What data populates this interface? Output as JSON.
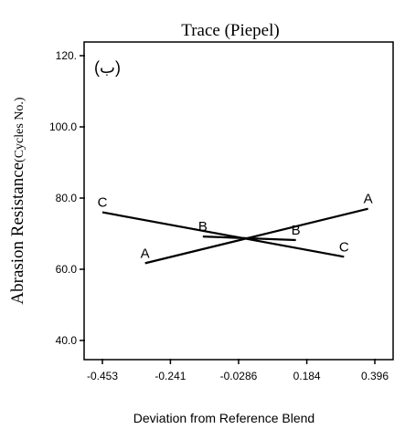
{
  "chart_data": {
    "type": "line",
    "title": "Trace (Piepel)",
    "panel_label": "(ب)",
    "xlabel": "Deviation from Reference Blend",
    "ylabel_main": "Abrasion Resistance",
    "ylabel_unit": "(Cycles No.)",
    "xlim": [
      -0.453,
      0.396
    ],
    "ylim": [
      35,
      125
    ],
    "x_ticks": [
      -0.453,
      -0.241,
      -0.0286,
      0.184,
      0.396
    ],
    "x_tick_labels": [
      "-0.453",
      "-0.241",
      "-0.0286",
      "0.184",
      "0.396"
    ],
    "y_ticks": [
      40,
      60,
      80,
      100,
      120
    ],
    "y_tick_labels": [
      "40.0",
      "60.0",
      "80.0",
      "100.0",
      "120."
    ],
    "grid": false,
    "series": [
      {
        "name": "A",
        "x": [
          -0.32,
          0.375
        ],
        "y": [
          61.7,
          77.0
        ]
      },
      {
        "name": "B",
        "x": [
          -0.14,
          0.15
        ],
        "y": [
          69.2,
          68.2
        ]
      },
      {
        "name": "C",
        "x": [
          -0.453,
          0.3
        ],
        "y": [
          76.0,
          63.5
        ]
      }
    ]
  }
}
